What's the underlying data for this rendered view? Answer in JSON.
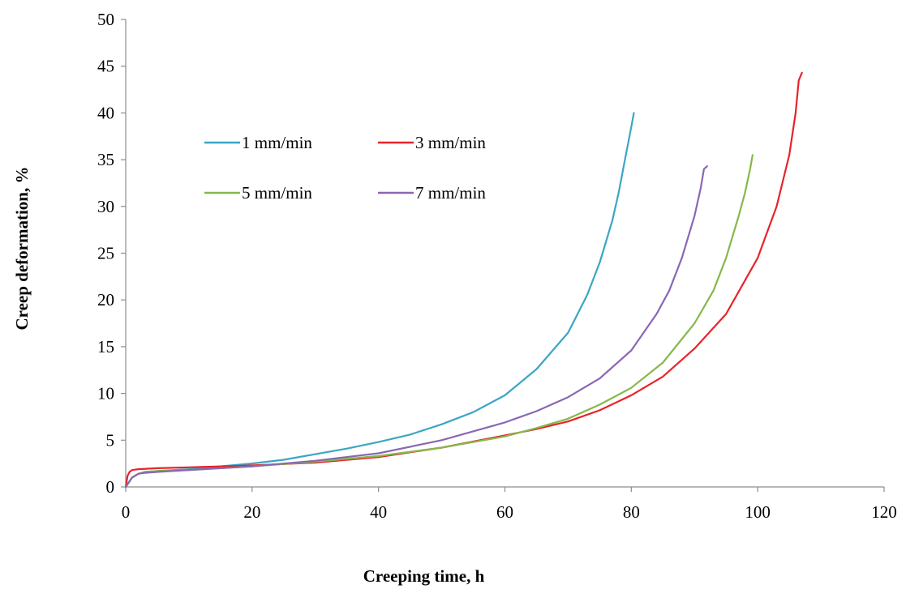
{
  "chart_data": {
    "type": "line",
    "title": "",
    "xlabel": "Creeping time, h",
    "ylabel": "Creep deformation, %",
    "xlim": [
      0,
      120
    ],
    "ylim": [
      0,
      50
    ],
    "xticks": [
      "0",
      "20",
      "40",
      "60",
      "80",
      "100",
      "120"
    ],
    "yticks": [
      "0",
      "5",
      "10",
      "15",
      "20",
      "25",
      "30",
      "35",
      "40",
      "45",
      "50"
    ],
    "grid": false,
    "legend_placement": "upper-left",
    "series": [
      {
        "name": "1 mm/min",
        "color": "#3aa6c4",
        "x": [
          0,
          0.5,
          1,
          2,
          3,
          5,
          10,
          15,
          20,
          25,
          30,
          35,
          40,
          45,
          50,
          55,
          60,
          65,
          70,
          73,
          75,
          77,
          78,
          79,
          80,
          80.4
        ],
        "y": [
          0,
          0.5,
          1.0,
          1.4,
          1.6,
          1.7,
          1.9,
          2.2,
          2.5,
          2.9,
          3.5,
          4.1,
          4.8,
          5.6,
          6.7,
          8.0,
          9.8,
          12.6,
          16.5,
          20.5,
          24.0,
          28.5,
          31.5,
          35.0,
          38.5,
          40.0
        ]
      },
      {
        "name": "3 mm/min",
        "color": "#e8232a",
        "x": [
          0,
          0.3,
          0.6,
          1,
          2,
          5,
          10,
          20,
          30,
          40,
          50,
          60,
          65,
          70,
          75,
          80,
          85,
          90,
          95,
          100,
          103,
          105,
          106,
          106.5,
          107
        ],
        "y": [
          0,
          1.2,
          1.6,
          1.8,
          1.9,
          2.0,
          2.1,
          2.3,
          2.6,
          3.2,
          4.2,
          5.5,
          6.2,
          7.0,
          8.2,
          9.8,
          11.8,
          14.8,
          18.5,
          24.5,
          30.0,
          35.5,
          40.0,
          43.5,
          44.3
        ]
      },
      {
        "name": "5 mm/min",
        "color": "#86b84a",
        "x": [
          0,
          0.5,
          1,
          2,
          3,
          5,
          10,
          20,
          30,
          40,
          50,
          60,
          65,
          70,
          75,
          80,
          85,
          90,
          93,
          95,
          97,
          98,
          98.8,
          99.2
        ],
        "y": [
          0,
          0.5,
          1.0,
          1.4,
          1.6,
          1.7,
          1.8,
          2.2,
          2.7,
          3.3,
          4.2,
          5.4,
          6.3,
          7.3,
          8.8,
          10.6,
          13.3,
          17.5,
          21.0,
          24.5,
          29.0,
          31.5,
          34.0,
          35.5
        ]
      },
      {
        "name": "7 mm/min",
        "color": "#8a67b2",
        "x": [
          0,
          0.5,
          1,
          2,
          3,
          5,
          10,
          20,
          30,
          40,
          50,
          60,
          65,
          70,
          75,
          80,
          84,
          86,
          88,
          90,
          91,
          91.5,
          92
        ],
        "y": [
          0,
          0.5,
          1.0,
          1.4,
          1.5,
          1.6,
          1.8,
          2.2,
          2.8,
          3.6,
          5.0,
          6.9,
          8.1,
          9.6,
          11.6,
          14.6,
          18.5,
          21.0,
          24.5,
          29.0,
          32.0,
          34.0,
          34.3
        ]
      }
    ]
  }
}
